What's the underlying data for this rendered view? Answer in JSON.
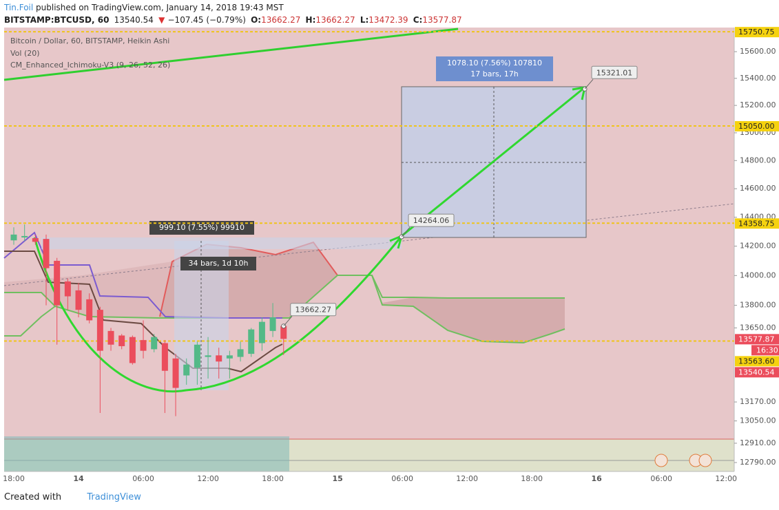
{
  "header": {
    "author": "Tin.Foil",
    "published": "published on TradingView.com, January 14, 2018 19:43 MST",
    "symbol": "BITSTAMP:BTCUSD, 60",
    "change_arrow": "▼",
    "change": "−107.45 (−0.79%)",
    "o": "O:",
    "h": "H:",
    "l": "L:",
    "c": "C:"
  },
  "legend": [
    "Bitcoin / Dollar, 60, BITSTAMP, Heikin Ashi",
    "Vol (20)",
    "CM_Enhanced_Ichimoku-V3 (9, 26, 52, 26)"
  ],
  "measures": [
    {
      "change": "999.10 (7.55%) 99910",
      "span": "34 bars, 1d 10h"
    },
    {
      "change": "1078.10 (7.56%) 107810",
      "span": "17 bars, 17h"
    }
  ],
  "footer": {
    "created": "Created with",
    "brand": "TradingView"
  },
  "chart_data": {
    "type": "candlestick",
    "up_color": "#53b987",
    "down_color": "#eb4d5c",
    "log": true,
    "categories": [
      "18:00",
      null,
      null,
      null,
      null,
      null,
      "14",
      null,
      null,
      null,
      null,
      null,
      "06:00",
      null,
      null,
      null,
      null,
      null,
      "12:00",
      null,
      null,
      null,
      null,
      null,
      "18:00",
      null,
      null,
      null,
      null,
      null,
      "15",
      null,
      null,
      null,
      null,
      null,
      "06:00",
      null,
      null,
      null,
      null,
      null,
      "12:00",
      null,
      null,
      null,
      null,
      null,
      "18:00",
      null,
      null,
      null,
      null,
      null,
      "16",
      null,
      null,
      null,
      null,
      null,
      "06:00",
      null,
      null,
      null,
      null,
      null,
      "12:00"
    ],
    "open": [
      14240,
      14260,
      14255,
      14250,
      14100,
      13960,
      13900,
      13840,
      13770,
      13630,
      13600,
      13590,
      13570,
      13510,
      13550,
      13450,
      13340,
      13390,
      13460,
      13470,
      13450,
      13460,
      13480,
      13550,
      13630,
      13662.27,
      null,
      null,
      null,
      null,
      null,
      null,
      null,
      null,
      null,
      null,
      null,
      null,
      null,
      null,
      null,
      null,
      null,
      null,
      null,
      null,
      null,
      null,
      null,
      null,
      null,
      null,
      null,
      null,
      null,
      null,
      null,
      null,
      null,
      null,
      null,
      null,
      null,
      null,
      null,
      null,
      null
    ],
    "high": [
      14330,
      14350,
      14280,
      14280,
      14120,
      13980,
      13950,
      13880,
      13790,
      13650,
      13610,
      13600,
      13700,
      13610,
      13570,
      13480,
      13450,
      13560,
      13590,
      13520,
      13500,
      13560,
      13650,
      13720,
      13815,
      13662.27,
      null,
      null,
      null,
      null,
      null,
      null,
      null,
      null,
      null,
      null,
      null,
      null,
      null,
      null,
      null,
      null,
      null,
      null,
      null,
      null,
      null,
      null,
      null,
      null,
      null,
      null,
      null,
      null,
      null,
      null,
      null,
      null,
      null,
      null,
      null,
      null,
      null,
      null,
      null,
      null,
      null
    ],
    "low": [
      14210,
      14235,
      14210,
      13800,
      13540,
      13770,
      13720,
      13680,
      13100,
      13500,
      13510,
      13410,
      13450,
      13490,
      13100,
      13080,
      13280,
      13280,
      13320,
      13320,
      13320,
      13430,
      13460,
      13500,
      13590,
      13472.39,
      null,
      null,
      null,
      null,
      null,
      null,
      null,
      null,
      null,
      null,
      null,
      null,
      null,
      null,
      null,
      null,
      null,
      null,
      null,
      null,
      null,
      null,
      null,
      null,
      null,
      null,
      null,
      null,
      null,
      null,
      null,
      null,
      null,
      null,
      null,
      null,
      null,
      null,
      null,
      null,
      null
    ],
    "close": [
      14280,
      14270,
      14230,
      14050,
      13800,
      13860,
      13770,
      13700,
      13500,
      13540,
      13530,
      13420,
      13500,
      13590,
      13370,
      13260,
      13410,
      13540,
      13470,
      13430,
      13470,
      13510,
      13640,
      13690,
      13720,
      13577.87,
      null,
      null,
      null,
      null,
      null,
      null,
      null,
      null,
      null,
      null,
      null,
      null,
      null,
      null,
      null,
      null,
      null,
      null,
      null,
      null,
      null,
      null,
      null,
      null,
      null,
      null,
      null,
      null,
      null,
      null,
      null,
      null,
      null,
      null,
      null,
      null,
      null,
      null,
      null,
      null,
      null
    ],
    "ylim": [
      12735,
      15783
    ],
    "yticks": [
      {
        "value": 15600,
        "label": "15600.00"
      },
      {
        "value": 15400,
        "label": "15400.00"
      },
      {
        "value": 15200,
        "label": "15200.00"
      },
      {
        "value": 15000,
        "label": "15000.00"
      },
      {
        "value": 14800,
        "label": "14800.00"
      },
      {
        "value": 14600,
        "label": "14600.00"
      },
      {
        "value": 14400,
        "label": "14400.00"
      },
      {
        "value": 14200,
        "label": "14200.00"
      },
      {
        "value": 14000,
        "label": "14000.00"
      },
      {
        "value": 13800,
        "label": "13800.00"
      },
      {
        "value": 13650,
        "label": "13650.00"
      },
      {
        "value": 13170,
        "label": "13170.00"
      },
      {
        "value": 13050,
        "label": "13050.00"
      },
      {
        "value": 12910,
        "label": "12910.00"
      },
      {
        "value": 12790,
        "label": "12790.00"
      }
    ],
    "price_lines": [
      15750.75,
      {
        "value": 15050,
        "label": "15050.00"
      },
      14358.75,
      {
        "value": 13563.6,
        "label": "13563.60"
      }
    ],
    "last_price": 13540.54,
    "countdown": "16:30",
    "callouts": [
      14264.06,
      15321.01
    ]
  }
}
